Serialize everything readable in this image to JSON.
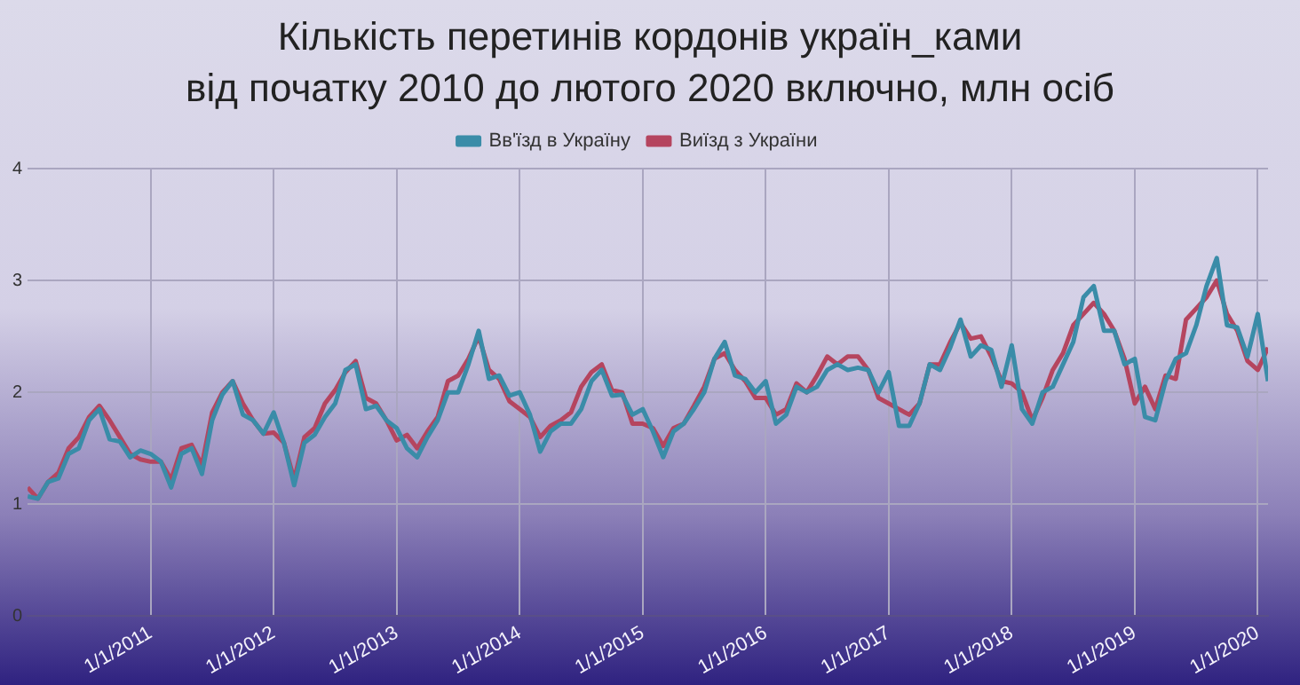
{
  "chart_data": {
    "type": "line",
    "title": "Кількість перетинів кордонів україн_ками\nвід початку 2010 до лютого 2020 включно, млн осіб",
    "x": [
      "2010-01",
      "2010-02",
      "2010-03",
      "2010-04",
      "2010-05",
      "2010-06",
      "2010-07",
      "2010-08",
      "2010-09",
      "2010-10",
      "2010-11",
      "2010-12",
      "2011-01",
      "2011-02",
      "2011-03",
      "2011-04",
      "2011-05",
      "2011-06",
      "2011-07",
      "2011-08",
      "2011-09",
      "2011-10",
      "2011-11",
      "2011-12",
      "2012-01",
      "2012-02",
      "2012-03",
      "2012-04",
      "2012-05",
      "2012-06",
      "2012-07",
      "2012-08",
      "2012-09",
      "2012-10",
      "2012-11",
      "2012-12",
      "2013-01",
      "2013-02",
      "2013-03",
      "2013-04",
      "2013-05",
      "2013-06",
      "2013-07",
      "2013-08",
      "2013-09",
      "2013-10",
      "2013-11",
      "2013-12",
      "2014-01",
      "2014-02",
      "2014-03",
      "2014-04",
      "2014-05",
      "2014-06",
      "2014-07",
      "2014-08",
      "2014-09",
      "2014-10",
      "2014-11",
      "2014-12",
      "2015-01",
      "2015-02",
      "2015-03",
      "2015-04",
      "2015-05",
      "2015-06",
      "2015-07",
      "2015-08",
      "2015-09",
      "2015-10",
      "2015-11",
      "2015-12",
      "2016-01",
      "2016-02",
      "2016-03",
      "2016-04",
      "2016-05",
      "2016-06",
      "2016-07",
      "2016-08",
      "2016-09",
      "2016-10",
      "2016-11",
      "2016-12",
      "2017-01",
      "2017-02",
      "2017-03",
      "2017-04",
      "2017-05",
      "2017-06",
      "2017-07",
      "2017-08",
      "2017-09",
      "2017-10",
      "2017-11",
      "2017-12",
      "2018-01",
      "2018-02",
      "2018-03",
      "2018-04",
      "2018-05",
      "2018-06",
      "2018-07",
      "2018-08",
      "2018-09",
      "2018-10",
      "2018-11",
      "2018-12",
      "2019-01",
      "2019-02",
      "2019-03",
      "2019-04",
      "2019-05",
      "2019-06",
      "2019-07",
      "2019-08",
      "2019-09",
      "2019-10",
      "2019-11",
      "2019-12",
      "2020-01",
      "2020-02"
    ],
    "series": [
      {
        "name": "Вв'їзд в Україну",
        "color": "#3a8ca8",
        "values": [
          1.07,
          1.05,
          1.2,
          1.23,
          1.45,
          1.5,
          1.75,
          1.85,
          1.58,
          1.56,
          1.42,
          1.48,
          1.45,
          1.38,
          1.15,
          1.45,
          1.5,
          1.27,
          1.75,
          1.98,
          2.1,
          1.8,
          1.75,
          1.63,
          1.82,
          1.55,
          1.17,
          1.55,
          1.62,
          1.78,
          1.9,
          2.2,
          2.25,
          1.85,
          1.88,
          1.75,
          1.68,
          1.5,
          1.42,
          1.6,
          1.75,
          2.0,
          2.0,
          2.25,
          2.55,
          2.12,
          2.15,
          1.97,
          2.0,
          1.8,
          1.47,
          1.65,
          1.72,
          1.72,
          1.85,
          2.1,
          2.2,
          1.97,
          1.98,
          1.8,
          1.85,
          1.65,
          1.42,
          1.65,
          1.72,
          1.85,
          2.0,
          2.3,
          2.45,
          2.15,
          2.12,
          2.0,
          2.1,
          1.72,
          1.8,
          2.05,
          2.0,
          2.05,
          2.2,
          2.25,
          2.2,
          2.22,
          2.2,
          2.0,
          2.18,
          1.7,
          1.7,
          1.9,
          2.25,
          2.2,
          2.4,
          2.65,
          2.32,
          2.42,
          2.38,
          2.05,
          2.42,
          1.85,
          1.72,
          2.0,
          2.05,
          2.25,
          2.45,
          2.85,
          2.95,
          2.55,
          2.55,
          2.25,
          2.3,
          1.78,
          1.75,
          2.1,
          2.3,
          2.35,
          2.6,
          2.95,
          3.2,
          2.6,
          2.58,
          2.32,
          2.7,
          2.1
        ]
      },
      {
        "name": "Виїзд з України",
        "color": "#b5455f",
        "values": [
          1.15,
          1.05,
          1.2,
          1.28,
          1.5,
          1.6,
          1.78,
          1.88,
          1.75,
          1.6,
          1.45,
          1.4,
          1.38,
          1.38,
          1.22,
          1.5,
          1.53,
          1.35,
          1.82,
          2.0,
          2.1,
          1.9,
          1.75,
          1.63,
          1.64,
          1.55,
          1.22,
          1.6,
          1.68,
          1.9,
          2.02,
          2.18,
          2.28,
          1.95,
          1.9,
          1.75,
          1.57,
          1.62,
          1.5,
          1.65,
          1.78,
          2.1,
          2.15,
          2.3,
          2.5,
          2.2,
          2.12,
          1.92,
          1.85,
          1.78,
          1.6,
          1.7,
          1.75,
          1.82,
          2.05,
          2.18,
          2.25,
          2.02,
          2.0,
          1.72,
          1.72,
          1.68,
          1.52,
          1.68,
          1.72,
          1.88,
          2.05,
          2.3,
          2.35,
          2.2,
          2.1,
          1.95,
          1.95,
          1.8,
          1.85,
          2.08,
          2.0,
          2.15,
          2.32,
          2.25,
          2.32,
          2.32,
          2.2,
          1.95,
          1.9,
          1.85,
          1.8,
          1.9,
          2.25,
          2.25,
          2.45,
          2.62,
          2.48,
          2.5,
          2.32,
          2.1,
          2.08,
          2.0,
          1.75,
          1.95,
          2.2,
          2.35,
          2.6,
          2.7,
          2.8,
          2.7,
          2.55,
          2.3,
          1.9,
          2.05,
          1.85,
          2.15,
          2.12,
          2.65,
          2.75,
          2.85,
          3.0,
          2.7,
          2.55,
          2.28,
          2.2,
          2.4
        ]
      }
    ],
    "xlim": [
      "2010-01",
      "2020-02"
    ],
    "xticks": [
      {
        "value": "2011-01",
        "label": "1/1/2011"
      },
      {
        "value": "2012-01",
        "label": "1/1/2012"
      },
      {
        "value": "2013-01",
        "label": "1/1/2013"
      },
      {
        "value": "2014-01",
        "label": "1/1/2014"
      },
      {
        "value": "2015-01",
        "label": "1/1/2015"
      },
      {
        "value": "2016-01",
        "label": "1/1/2016"
      },
      {
        "value": "2017-01",
        "label": "1/1/2017"
      },
      {
        "value": "2018-01",
        "label": "1/1/2018"
      },
      {
        "value": "2019-01",
        "label": "1/1/2019"
      },
      {
        "value": "2020-01",
        "label": "1/1/2020"
      }
    ],
    "ylim": [
      0,
      4
    ],
    "yticks": [
      0,
      1,
      2,
      3,
      4
    ],
    "grid": true,
    "legend": "top",
    "marker": "none",
    "line_style": "solid"
  }
}
